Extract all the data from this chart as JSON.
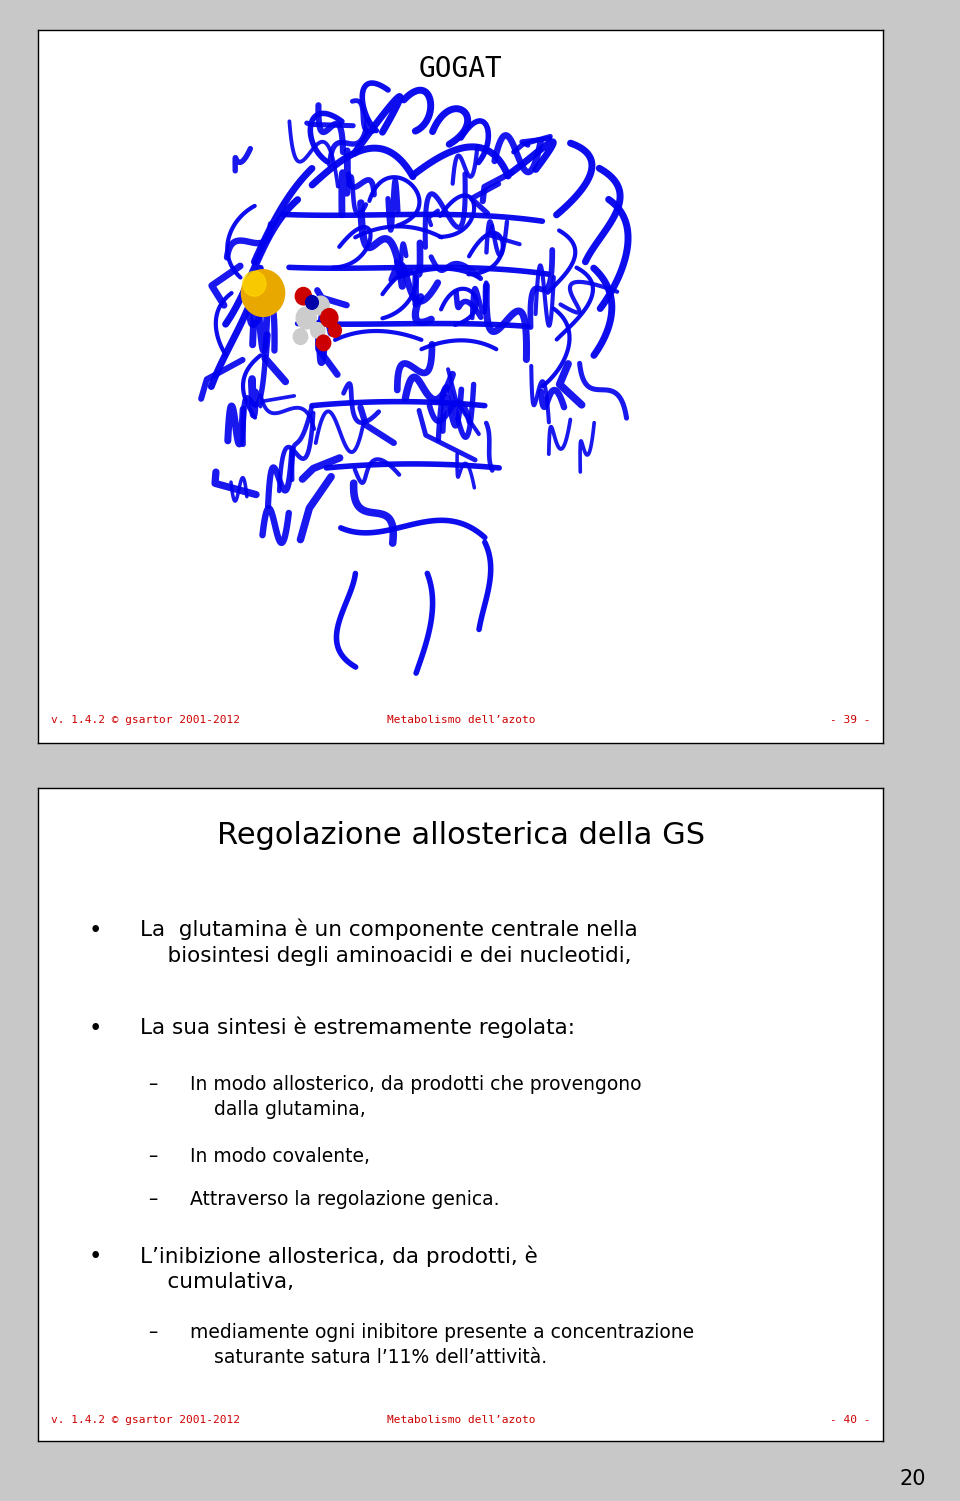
{
  "slide1": {
    "title": "GOGAT",
    "title_font": "monospace",
    "title_fontsize": 20,
    "footer_left": "v. 1.4.2 © gsartor 2001-2012",
    "footer_center": "Metabolismo dell’azoto",
    "footer_right": "- 39 -",
    "footer_color": "#cc0000",
    "footer_fontsize": 8
  },
  "slide2": {
    "title": "Regolazione allosterica della GS",
    "title_fontsize": 22,
    "footer_left": "v. 1.4.2 © gsartor 2001-2012",
    "footer_center": "Metabolismo dell’azoto",
    "footer_right": "- 40 -",
    "footer_color": "#cc0000",
    "footer_fontsize": 8
  },
  "page_number": "20",
  "bg_color": "#c8c8c8",
  "slide_bg": "#ffffff",
  "border_color": "#000000",
  "text_color": "#000000"
}
